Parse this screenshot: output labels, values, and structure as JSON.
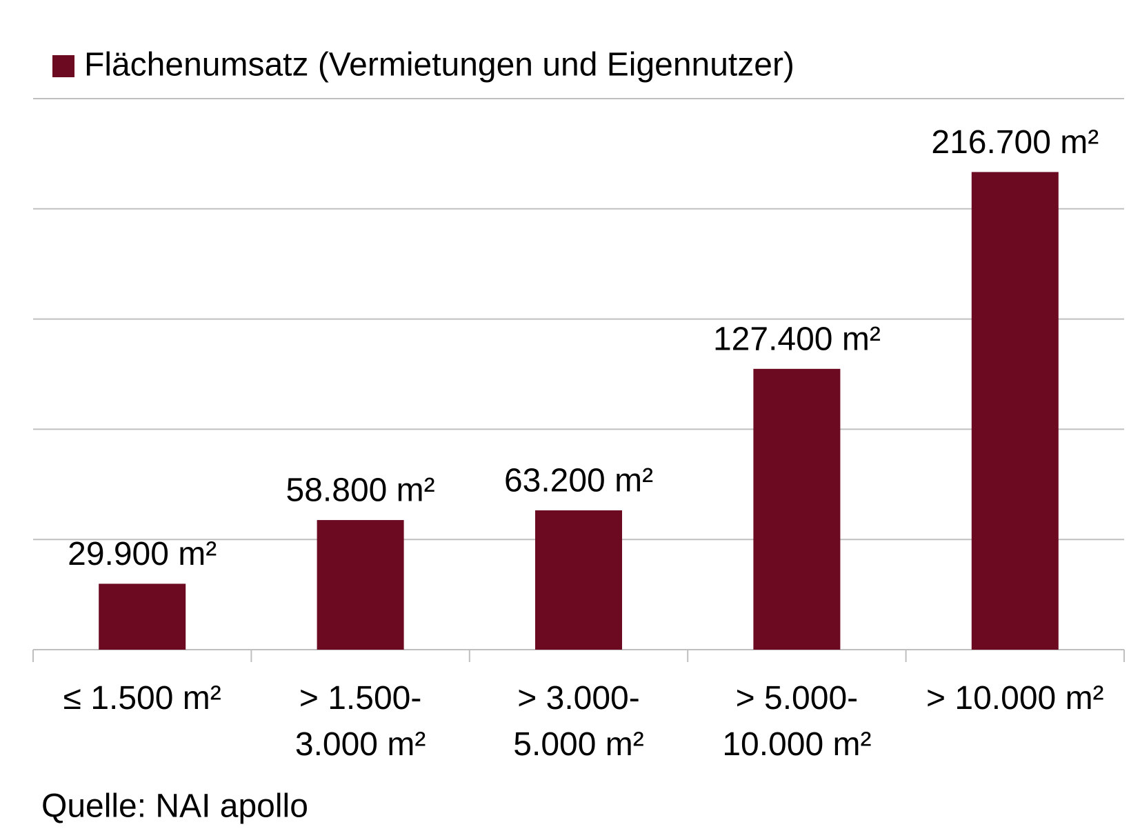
{
  "chart_data": {
    "type": "bar",
    "categories": [
      "≤ 1.500 m²",
      "> 1.500-\n3.000 m²",
      "> 3.000-\n5.000 m²",
      "> 5.000-\n10.000 m²",
      "> 10.000 m²"
    ],
    "series": [
      {
        "name": "Flächenumsatz (Vermietungen und Eigennutzer)",
        "color": "#6b0a21",
        "values": [
          29900,
          58800,
          63200,
          127400,
          216700
        ],
        "value_labels": [
          "29.900 m²",
          "58.800 m²",
          "63.200 m²",
          "127.400 m²",
          "216.700 m²"
        ]
      }
    ],
    "ylim": [
      0,
      250000
    ],
    "yticks": [
      0,
      50000,
      100000,
      150000,
      200000,
      250000
    ],
    "grid": true,
    "legend": "top-left",
    "note": "Quelle: NAI apollo"
  }
}
